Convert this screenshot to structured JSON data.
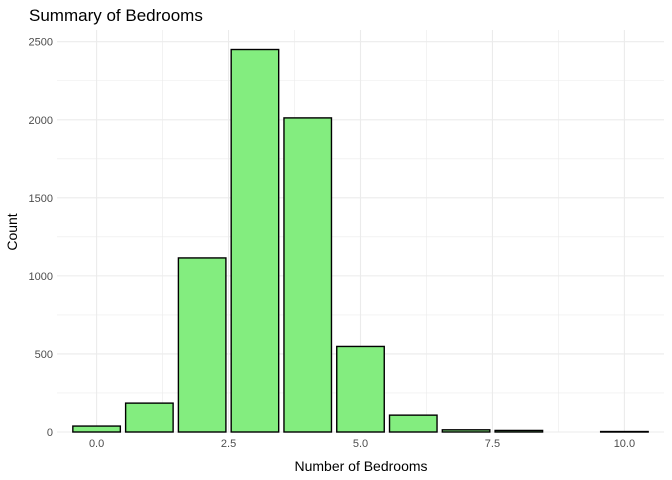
{
  "chart_data": {
    "type": "bar",
    "title": "Summary of Bedrooms",
    "xlabel": "Number of Bedrooms",
    "ylabel": "Count",
    "x": [
      0,
      1,
      2,
      3,
      4,
      5,
      6,
      7,
      8,
      10
    ],
    "values": [
      38,
      185,
      1115,
      2450,
      2012,
      548,
      108,
      14,
      10,
      3
    ],
    "xlim": [
      -0.75,
      10.75
    ],
    "ylim": [
      0,
      2575
    ],
    "x_ticks": [
      "0.0",
      "2.5",
      "5.0",
      "7.5",
      "10.0"
    ],
    "y_ticks": [
      "0",
      "500",
      "1000",
      "1500",
      "2000",
      "2500"
    ],
    "grid": true,
    "bar_fill": "#83ED7F",
    "bar_stroke": "#000000",
    "background": "#FFFFFF",
    "grid_color": "#EBEBEB"
  }
}
